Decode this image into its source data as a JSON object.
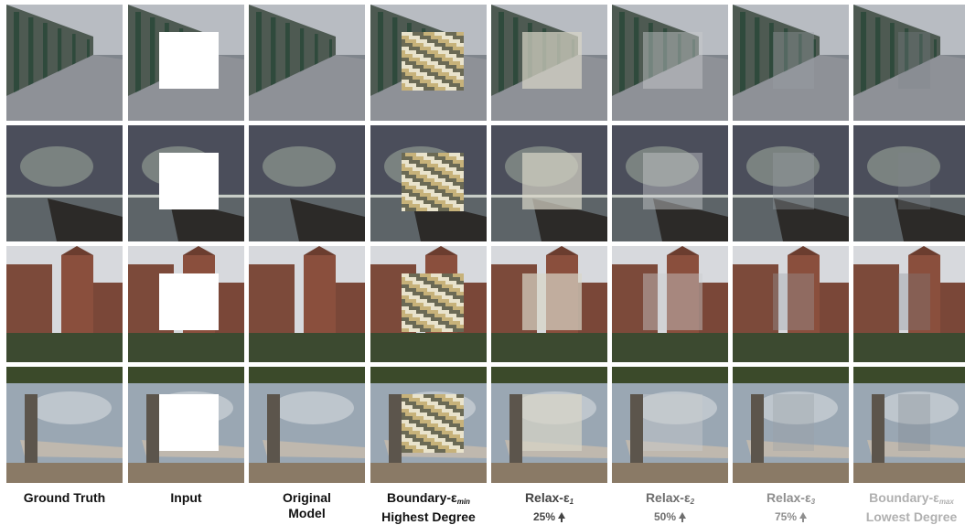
{
  "columns": [
    {
      "line1": "Ground Truth",
      "line2": "",
      "color": "#111111"
    },
    {
      "line1": "Input",
      "line2": "",
      "color": "#111111"
    },
    {
      "line1": "Original",
      "line2": "Model",
      "color": "#111111"
    },
    {
      "line1": "Boundary-ε",
      "sub": "min",
      "line2": "Highest Degree",
      "color": "#111111"
    },
    {
      "line1": "Relax-ε",
      "sub": "1",
      "line2": "25%",
      "arrow": true,
      "color": "#444444"
    },
    {
      "line1": "Relax-ε",
      "sub": "2",
      "line2": "50%",
      "arrow": true,
      "color": "#6e6e6e"
    },
    {
      "line1": "Relax-ε",
      "sub": "3",
      "line2": "75%",
      "arrow": true,
      "color": "#8f8f8f"
    },
    {
      "line1": "Boundary-ε",
      "sub": "max",
      "line2": "Lowest Degree",
      "color": "#b0b0b0"
    }
  ],
  "rows": [
    {
      "scene": "pier-boardwalk"
    },
    {
      "scene": "stormy-sky-dock"
    },
    {
      "scene": "brick-church"
    },
    {
      "scene": "wooden-bench-lake"
    }
  ]
}
